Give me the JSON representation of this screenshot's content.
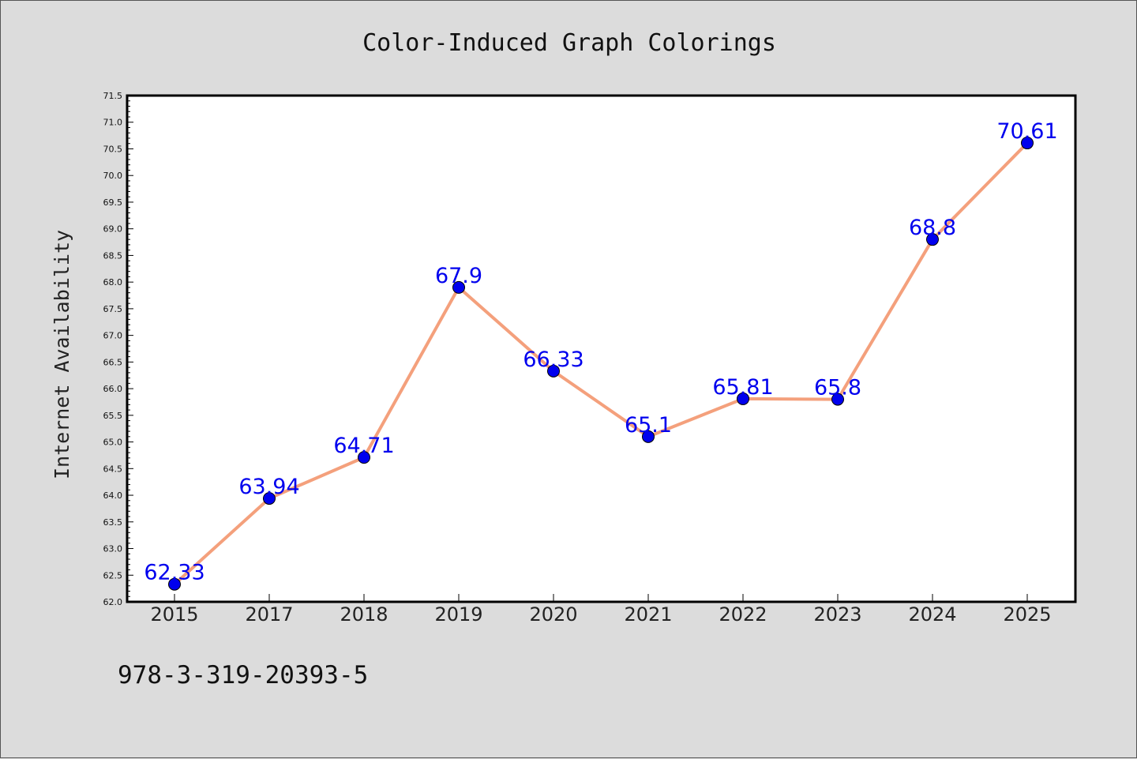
{
  "chart_data": {
    "type": "line",
    "title": "Color-Induced Graph Colorings",
    "xlabel": "",
    "ylabel": "Internet Availability",
    "categories": [
      "2015",
      "2017",
      "2018",
      "2019",
      "2020",
      "2021",
      "2022",
      "2023",
      "2024",
      "2025"
    ],
    "series": [
      {
        "values": [
          62.33,
          63.94,
          64.71,
          67.9,
          66.33,
          65.1,
          65.81,
          65.8,
          68.8,
          70.61
        ],
        "data_labels": [
          "62.33",
          "63.94",
          "64.71",
          "67.9",
          "66.33",
          "65.1",
          "65.81",
          "65.8",
          "68.8",
          "70.61"
        ],
        "line_color": "#f4a07c",
        "marker_color": "#0000ee"
      }
    ],
    "ylim": [
      62.0,
      71.5
    ],
    "yticks": [
      "62.0",
      "62.5",
      "63.0",
      "63.5",
      "64.0",
      "64.5",
      "65.0",
      "65.5",
      "66.0",
      "66.5",
      "67.0",
      "67.5",
      "68.0",
      "68.5",
      "69.0",
      "69.5",
      "70.0",
      "70.5",
      "71.0",
      "71.5"
    ],
    "grid": false,
    "legend": "none"
  },
  "footnote": "978-3-319-20393-5",
  "colors": {
    "background": "#dcdcdc",
    "plot_background": "#ffffff",
    "line": "#f4a07c",
    "marker": "#0000ee",
    "data_label": "#0000ee"
  }
}
